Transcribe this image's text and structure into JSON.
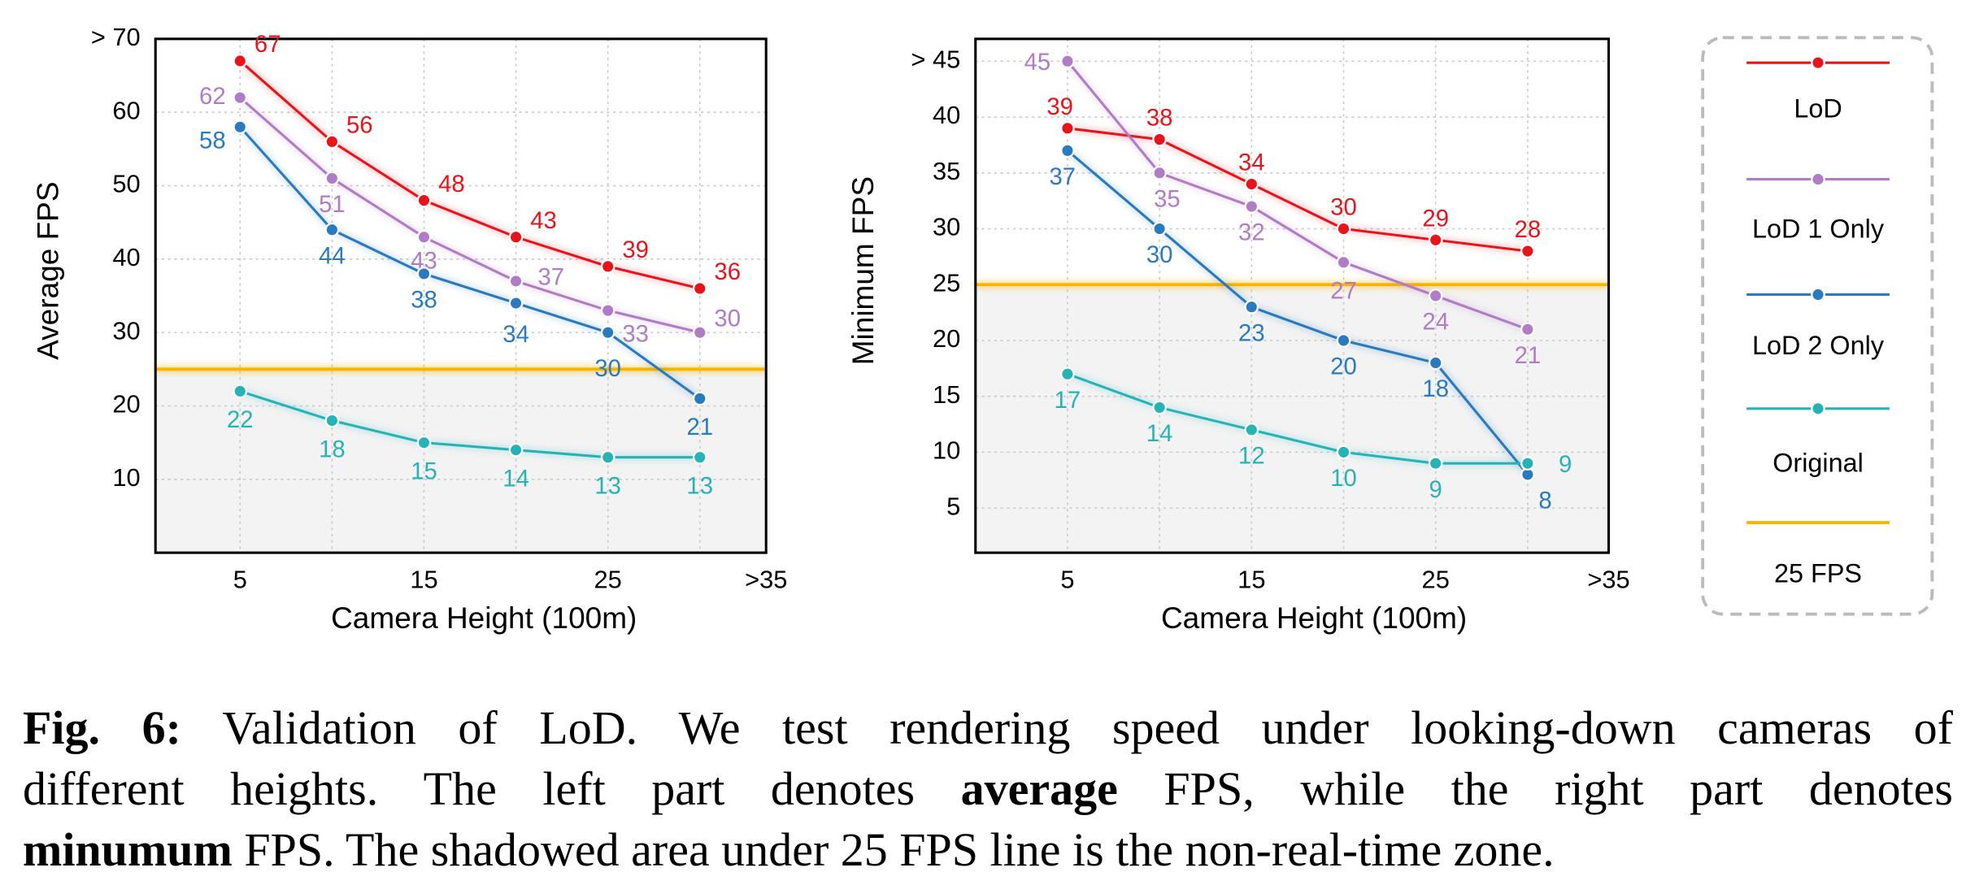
{
  "chart_data": [
    {
      "type": "line",
      "ylabel": "Average FPS",
      "xlabel": "Camera Height (100m)",
      "x": [
        5,
        10,
        15,
        20,
        25,
        30
      ],
      "xlim": [
        0.4,
        33.6
      ],
      "xticks": [
        5,
        15,
        25,
        {
          "value": 33.6,
          "label": ">35"
        }
      ],
      "x_minor_ticks": [
        10,
        20,
        30
      ],
      "ylim": [
        0,
        70
      ],
      "yticks": [
        10,
        20,
        30,
        40,
        50,
        60,
        {
          "value": 70,
          "label": "> 70"
        }
      ],
      "grid": true,
      "threshold": {
        "name": "25 FPS",
        "value": 25,
        "color": "#f7b500"
      },
      "series": [
        {
          "name": "LoD",
          "color": "#e8141c",
          "values": [
            67,
            56,
            48,
            43,
            39,
            36
          ]
        },
        {
          "name": "LoD 1 Only",
          "color": "#b07cc6",
          "values": [
            62,
            51,
            43,
            37,
            33,
            30
          ]
        },
        {
          "name": "LoD 2 Only",
          "color": "#2a7ac0",
          "values": [
            58,
            44,
            38,
            34,
            30,
            21
          ]
        },
        {
          "name": "Original",
          "color": "#26b3b8",
          "values": [
            22,
            18,
            15,
            14,
            13,
            13
          ]
        }
      ]
    },
    {
      "type": "line",
      "ylabel": "Minimum FPS",
      "xlabel": "Camera Height (100m)",
      "x": [
        5,
        10,
        15,
        20,
        25,
        30
      ],
      "xlim": [
        0,
        34.4
      ],
      "xticks": [
        5,
        15,
        25,
        {
          "value": 34.4,
          "label": ">35"
        }
      ],
      "x_minor_ticks": [
        10,
        20,
        30
      ],
      "ylim": [
        1,
        47
      ],
      "yticks": [
        5,
        10,
        15,
        20,
        25,
        30,
        35,
        40,
        {
          "value": 45,
          "label": "> 45"
        }
      ],
      "grid": true,
      "threshold": {
        "name": "25 FPS",
        "value": 25,
        "color": "#f7b500"
      },
      "series": [
        {
          "name": "LoD",
          "color": "#e8141c",
          "values": [
            39,
            38,
            34,
            30,
            29,
            28
          ]
        },
        {
          "name": "LoD 1 Only",
          "color": "#b07cc6",
          "values": [
            45,
            35,
            32,
            27,
            24,
            21
          ]
        },
        {
          "name": "LoD 2 Only",
          "color": "#2a7ac0",
          "values": [
            37,
            30,
            23,
            20,
            18,
            8
          ]
        },
        {
          "name": "Original",
          "color": "#26b3b8",
          "values": [
            17,
            14,
            12,
            10,
            9,
            9
          ]
        }
      ]
    }
  ],
  "caption": {
    "lines": [
      [
        {
          "text": "Fig. 6:",
          "bold": true
        },
        {
          "text": " Validation of LoD. We test rendering speed under looking-down cameras of",
          "bold": false
        }
      ],
      [
        {
          "text": "different heights. The left part denotes ",
          "bold": false
        },
        {
          "text": "average",
          "bold": true
        },
        {
          "text": " FPS, while the right part denotes",
          "bold": false
        }
      ],
      [
        {
          "text": "minumum",
          "bold": true
        },
        {
          "text": " FPS. The shadowed area under 25 FPS line is the non-real-time zone.",
          "bold": false
        }
      ]
    ]
  }
}
